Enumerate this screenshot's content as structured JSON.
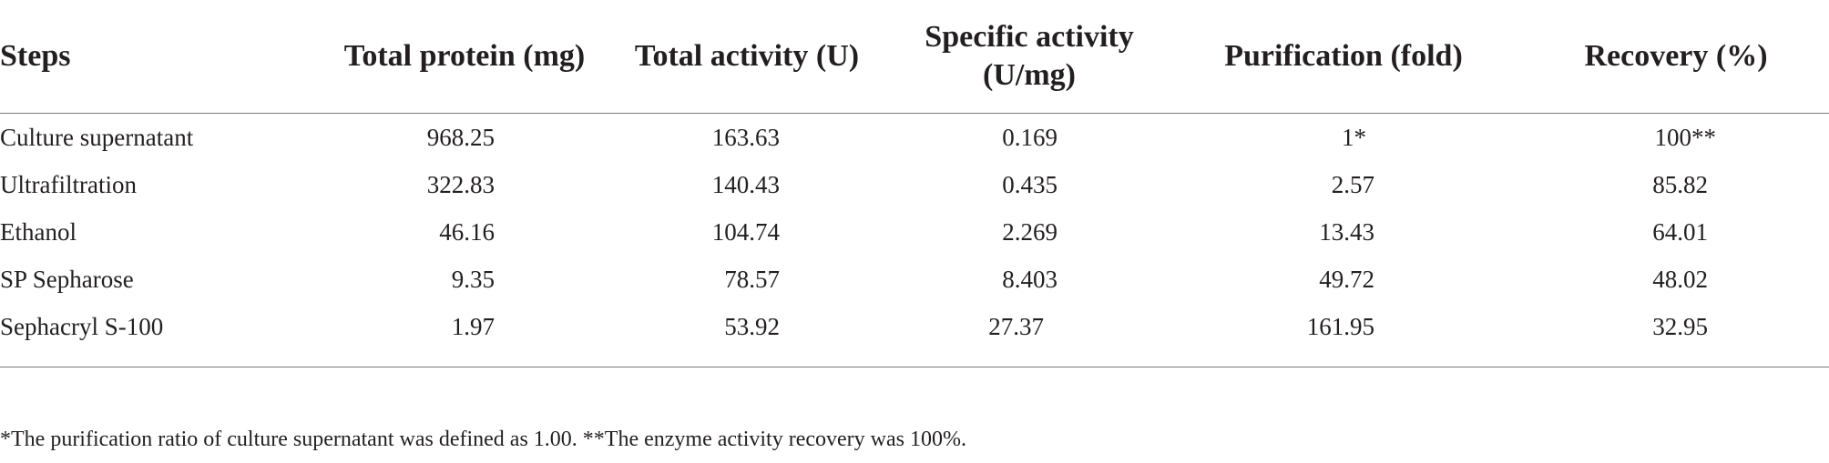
{
  "table": {
    "headers": {
      "steps": "Steps",
      "total_protein": "Total protein (mg)",
      "total_activity": "Total activity (U)",
      "specific_activity_line1": "Specific activity",
      "specific_activity_line2": "(U/mg)",
      "purification": "Purification (fold)",
      "recovery": "Recovery (%)"
    },
    "rows": [
      {
        "step": "Culture supernatant",
        "total_protein": "968.25",
        "total_activity": "163.63",
        "specific_activity": "0.169",
        "purification": "1*",
        "recovery": "100**"
      },
      {
        "step": "Ultrafiltration",
        "total_protein": "322.83",
        "total_activity": "140.43",
        "specific_activity": "0.435",
        "purification": "2.57",
        "recovery": "85.82"
      },
      {
        "step": "Ethanol",
        "total_protein": "46.16",
        "total_activity": "104.74",
        "specific_activity": "2.269",
        "purification": "13.43",
        "recovery": "64.01"
      },
      {
        "step": "SP Sepharose",
        "total_protein": "9.35",
        "total_activity": "78.57",
        "specific_activity": "8.403",
        "purification": "49.72",
        "recovery": "48.02"
      },
      {
        "step": "Sephacryl S-100",
        "total_protein": "1.97",
        "total_activity": "53.92",
        "specific_activity": "27.37",
        "purification": "161.95",
        "recovery": "32.95"
      }
    ],
    "footnote": "*The purification ratio of culture supernatant was defined as 1.00. **The enzyme activity recovery was 100%."
  }
}
